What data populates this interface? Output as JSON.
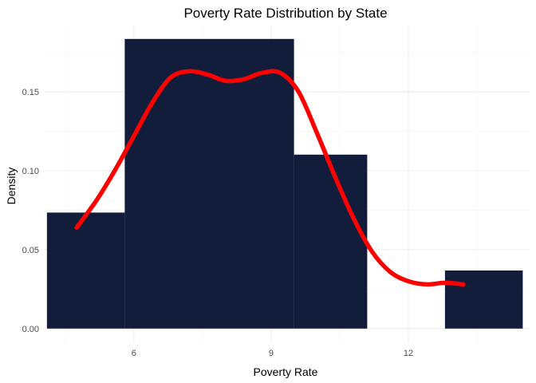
{
  "chart_data": {
    "type": "bar",
    "title": "Poverty Rate Distribution by State",
    "xlabel": "Poverty Rate",
    "ylabel": "Density",
    "xlim": [
      4.05,
      14.65
    ],
    "ylim": [
      -0.0092,
      0.192
    ],
    "x_ticks": [
      6,
      9,
      12
    ],
    "x_tick_labels": [
      "6",
      "9",
      "12"
    ],
    "y_ticks": [
      0.0,
      0.05,
      0.1,
      0.15
    ],
    "y_tick_labels": [
      "0.00",
      "0.05",
      "0.10",
      "0.15"
    ],
    "grid": true,
    "bars": [
      {
        "x0": 4.1,
        "x1": 5.8,
        "value": 0.0735
      },
      {
        "x0": 5.8,
        "x1": 9.5,
        "value": 0.1835
      },
      {
        "x0": 9.5,
        "x1": 11.1,
        "value": 0.1102
      },
      {
        "x0": 11.1,
        "x1": 12.8,
        "value": 0.0
      },
      {
        "x0": 12.8,
        "x1": 14.5,
        "value": 0.0368
      }
    ],
    "density": {
      "x": [
        4.75,
        5.2,
        5.6,
        6.0,
        6.4,
        6.8,
        7.2,
        7.6,
        8.0,
        8.4,
        8.8,
        9.2,
        9.6,
        10.0,
        10.4,
        10.8,
        11.2,
        11.6,
        12.0,
        12.4,
        12.8,
        13.2
      ],
      "y": [
        0.064,
        0.082,
        0.101,
        0.122,
        0.143,
        0.159,
        0.163,
        0.161,
        0.157,
        0.158,
        0.162,
        0.162,
        0.15,
        0.124,
        0.096,
        0.07,
        0.049,
        0.036,
        0.03,
        0.028,
        0.029,
        0.028
      ]
    },
    "colors": {
      "bar_fill": "#111d3a",
      "density_line": "#ff0000"
    }
  }
}
